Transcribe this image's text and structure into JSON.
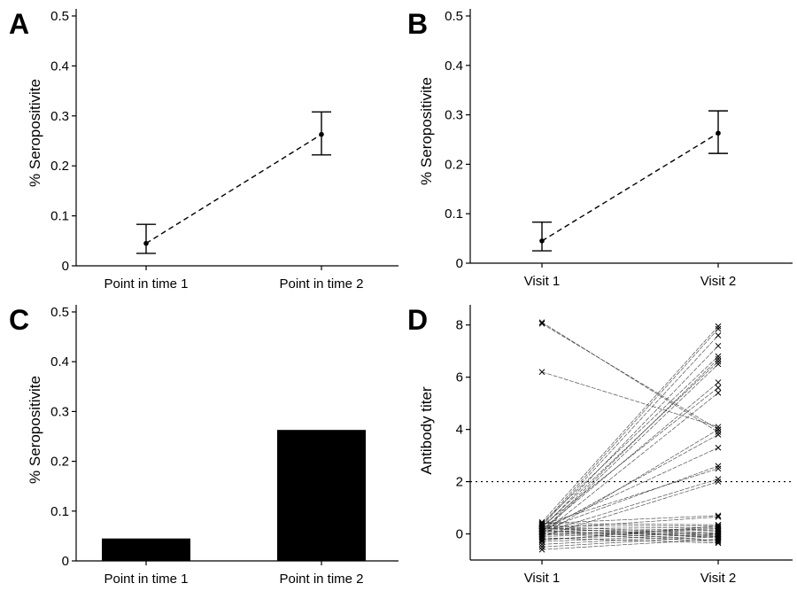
{
  "chart_data": [
    {
      "panel": "A",
      "type": "line",
      "ylabel": "% Seropositivite",
      "xlabel": "",
      "categories": [
        "Point in time 1",
        "Point in time 2"
      ],
      "ylim": [
        0,
        0.5
      ],
      "yticks": [
        0,
        0.1,
        0.2,
        0.3,
        0.4,
        0.5
      ],
      "ytick_labels": [
        "0",
        "0.1",
        "0.2",
        "0.3",
        "0.4",
        "0.5"
      ],
      "line_style": "dashed",
      "series": [
        {
          "values": [
            0.045,
            0.263
          ],
          "error_low": [
            0.025,
            0.222
          ],
          "error_high": [
            0.083,
            0.308
          ]
        }
      ]
    },
    {
      "panel": "B",
      "type": "line",
      "ylabel": "% Seropositivite",
      "xlabel": "",
      "categories": [
        "Visit 1",
        "Visit 2"
      ],
      "ylim": [
        0,
        0.5
      ],
      "yticks": [
        0,
        0.1,
        0.2,
        0.3,
        0.4,
        0.5
      ],
      "ytick_labels": [
        "0",
        "0.1",
        "0.2",
        "0.3",
        "0.4",
        "0.5"
      ],
      "line_style": "dashed",
      "series": [
        {
          "values": [
            0.045,
            0.263
          ],
          "error_low": [
            0.025,
            0.222
          ],
          "error_high": [
            0.083,
            0.308
          ]
        }
      ]
    },
    {
      "panel": "C",
      "type": "bar",
      "ylabel": "% Seropositivite",
      "xlabel": "",
      "categories": [
        "Point in time 1",
        "Point in time 2"
      ],
      "ylim": [
        0,
        0.5
      ],
      "yticks": [
        0,
        0.1,
        0.2,
        0.3,
        0.4,
        0.5
      ],
      "ytick_labels": [
        "0",
        "0.1",
        "0.2",
        "0.3",
        "0.4",
        "0.5"
      ],
      "values": [
        0.045,
        0.263
      ],
      "bar_color": "#000000"
    },
    {
      "panel": "D",
      "type": "line",
      "ylabel": "Antibody titer",
      "xlabel": "",
      "categories": [
        "Visit 1",
        "Visit 2"
      ],
      "ylim": [
        -1,
        8.5
      ],
      "yticks": [
        0,
        2,
        4,
        6,
        8
      ],
      "ytick_labels": [
        "0",
        "2",
        "4",
        "6",
        "8"
      ],
      "reference_line": {
        "y": 2,
        "style": "dotted"
      },
      "marker": "x",
      "pairs": [
        [
          8.1,
          3.9
        ],
        [
          8.05,
          4.0
        ],
        [
          6.2,
          4.1
        ],
        [
          0.45,
          7.95
        ],
        [
          0.35,
          7.85
        ],
        [
          0.3,
          7.6
        ],
        [
          0.2,
          7.2
        ],
        [
          0.4,
          6.8
        ],
        [
          0.1,
          6.7
        ],
        [
          0.25,
          6.6
        ],
        [
          0.05,
          6.5
        ],
        [
          0.15,
          5.8
        ],
        [
          0.3,
          5.6
        ],
        [
          0.0,
          5.4
        ],
        [
          -0.05,
          4.0
        ],
        [
          0.1,
          3.8
        ],
        [
          0.2,
          3.3
        ],
        [
          0.15,
          2.6
        ],
        [
          0.35,
          2.5
        ],
        [
          0.05,
          2.1
        ],
        [
          -0.1,
          2.0
        ],
        [
          0.4,
          0.7
        ],
        [
          0.2,
          0.65
        ],
        [
          0.4,
          0.35
        ],
        [
          0.3,
          0.3
        ],
        [
          0.2,
          0.25
        ],
        [
          0.1,
          0.2
        ],
        [
          0.0,
          0.15
        ],
        [
          -0.1,
          0.1
        ],
        [
          -0.2,
          0.05
        ],
        [
          -0.3,
          0.0
        ],
        [
          -0.4,
          -0.05
        ],
        [
          -0.5,
          -0.1
        ],
        [
          -0.6,
          -0.2
        ],
        [
          0.25,
          -0.15
        ],
        [
          0.15,
          -0.25
        ],
        [
          0.05,
          -0.3
        ],
        [
          -0.15,
          -0.35
        ],
        [
          0.3,
          0.0
        ],
        [
          -0.25,
          0.3
        ],
        [
          0.1,
          -0.1
        ],
        [
          -0.05,
          0.2
        ],
        [
          0.2,
          -0.05
        ]
      ]
    }
  ]
}
